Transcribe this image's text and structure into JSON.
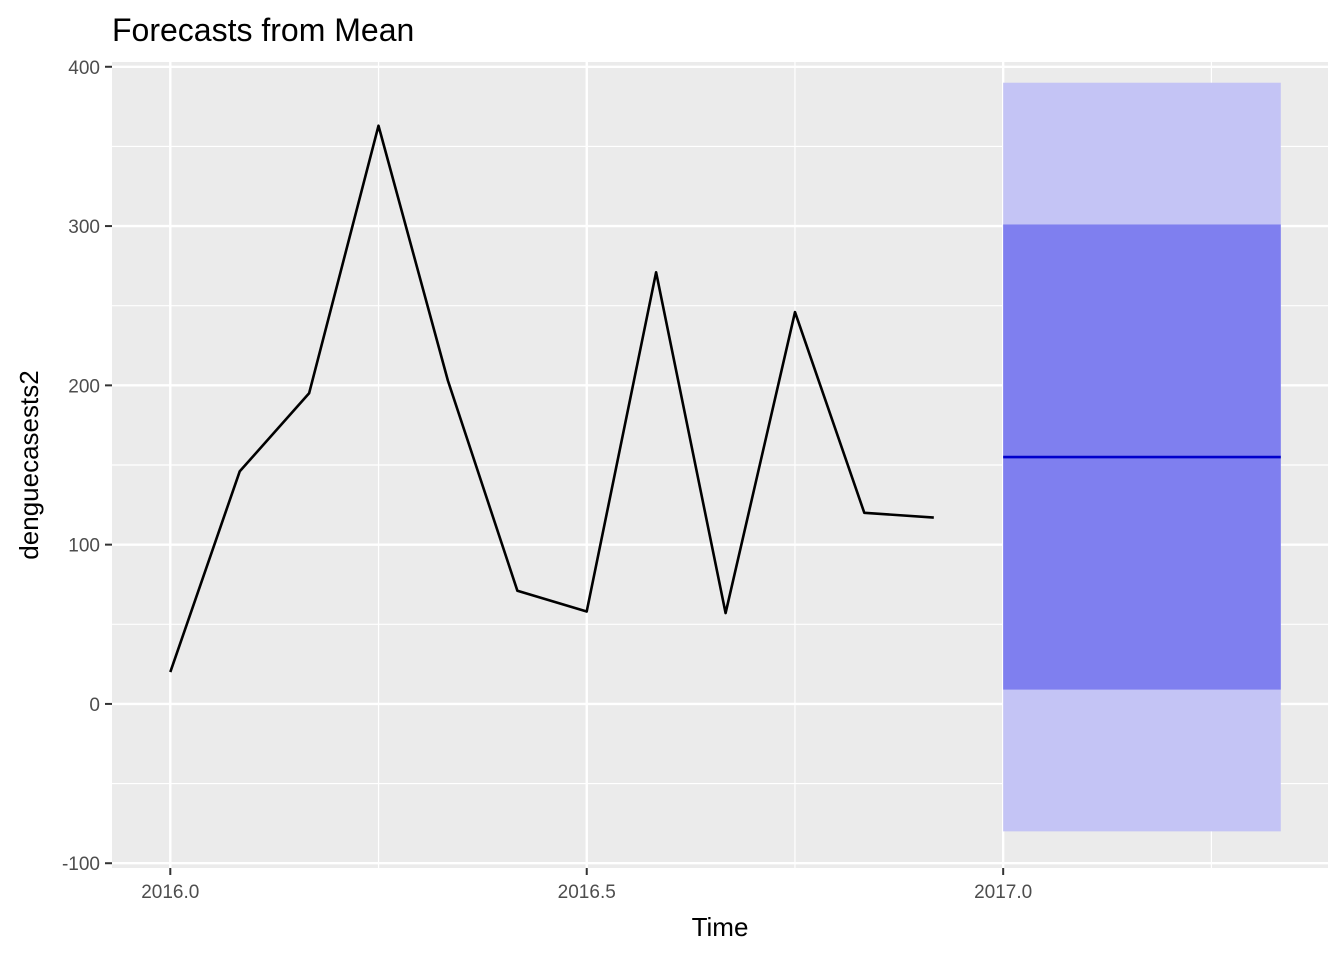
{
  "chart_data": {
    "type": "line",
    "title": "Forecasts from Mean",
    "xlabel": "Time",
    "ylabel": "denguecasests2",
    "xlim": [
      1.95833,
      3.39583
    ],
    "ylim": [
      -103,
      403
    ],
    "x_ticks": [
      {
        "value": 2016.0,
        "label": "2016.0"
      },
      {
        "value": 2016.5,
        "label": "2016.5"
      },
      {
        "value": 2017.0,
        "label": "2017.0"
      }
    ],
    "y_ticks": [
      {
        "value": -100,
        "label": "-100"
      },
      {
        "value": 0,
        "label": "0"
      },
      {
        "value": 100,
        "label": "100"
      },
      {
        "value": 200,
        "label": "200"
      },
      {
        "value": 300,
        "label": "300"
      },
      {
        "value": 400,
        "label": "400"
      }
    ],
    "grid": true,
    "series": [
      {
        "x": [
          2016.0,
          2016.0833,
          2016.1667,
          2016.25,
          2016.3333,
          2016.4167,
          2016.5,
          2016.5833,
          2016.6667,
          2016.75,
          2016.8333,
          2016.9167
        ],
        "values": [
          20,
          146,
          195,
          363,
          203,
          71,
          58,
          271,
          57,
          246,
          120,
          117
        ]
      }
    ],
    "forecast": {
      "x_start": 2017.0,
      "x_end": 2017.3333,
      "mean": 155,
      "interval_80": [
        9,
        301
      ],
      "interval_95": [
        -80,
        390
      ]
    },
    "colors": {
      "panel": "#ebebeb",
      "grid": "#ffffff",
      "line": "#000000",
      "mean": "#0000cc",
      "band_80": "#7f7fef",
      "band_95": "#c4c4f5"
    }
  }
}
